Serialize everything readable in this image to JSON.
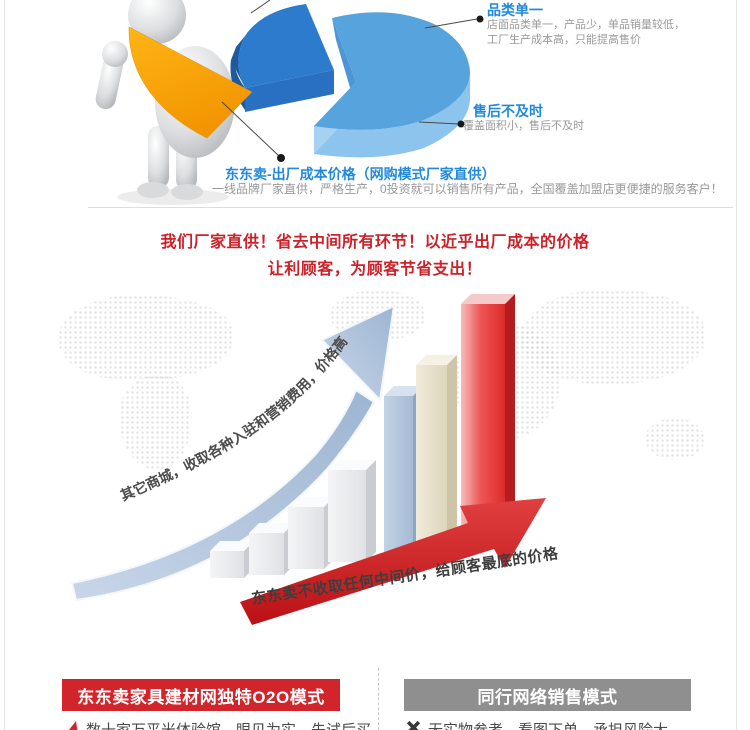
{
  "colors": {
    "accent_red": "#cc2129",
    "heading_blue": "#2289dd",
    "desc_gray": "#999999",
    "o2o_header_bg": "#d2252b",
    "peer_header_bg": "#8f8f8f",
    "orange_slice": "#f9a61a",
    "pie_dark_blue": "#2d7bcd",
    "pie_light_blue": "#57a3de"
  },
  "pie_section": {
    "callouts": [
      {
        "title": "品类单一",
        "line1": "店面品类单一，产品少，单品销量较低，",
        "line2": "工厂生产成本高，只能提高售价"
      },
      {
        "title": "售后不及时",
        "line1": "覆盖面积小，售后不及时"
      },
      {
        "title": "东东卖-出厂成本价格（网购模式厂家直供）",
        "line1": "一线品牌厂家直供，严格生产，0投资就可以销售所有产品，全国覆盖加盟店更便捷的服务客户！"
      }
    ]
  },
  "slogan": {
    "line1": "我们厂家直供！省去中间所有环节！以近乎出厂成本的价格",
    "line2": "让利顾客，为顾客节省支出！"
  },
  "growth": {
    "rising_arrow_text": "其它商城，收取各种入驻和营销费用，价格高昂",
    "red_arrow_text": "东东卖不收取任何中间价，给顾客最底的价格"
  },
  "comparison": {
    "left_header": "东东卖家具建材网独特O2O模式",
    "right_header": "同行网络销售模式",
    "left_point": "数十家万平米体验馆，眼见为实，先试后买",
    "right_point": "无实物参考，看图下单，承担风险大"
  },
  "chart_data": [
    {
      "type": "pie",
      "title": "",
      "segments": [
        {
          "label": "dark_blue_segment",
          "value": 30,
          "color": "#2d7bcd"
        },
        {
          "label": "light_blue_segment",
          "value": 55,
          "color": "#57a3de"
        },
        {
          "label": "pulled_out_orange_slice",
          "value": 15,
          "color": "#f9a61a"
        }
      ],
      "style": "3d-exploded",
      "note": "decorative pie, orange slice held by mascot figure"
    },
    {
      "type": "bar",
      "categories": [
        "1",
        "2",
        "3",
        "4",
        "5",
        "6",
        "7"
      ],
      "values": [
        27,
        42,
        62,
        92,
        158,
        177,
        227
      ],
      "unit": "relative-height-px",
      "palettes": [
        "gray",
        "gray",
        "gray",
        "gray",
        "blue",
        "cream",
        "red"
      ],
      "note": "decorative 3d ascending bars with rising arrow, no axes"
    }
  ]
}
